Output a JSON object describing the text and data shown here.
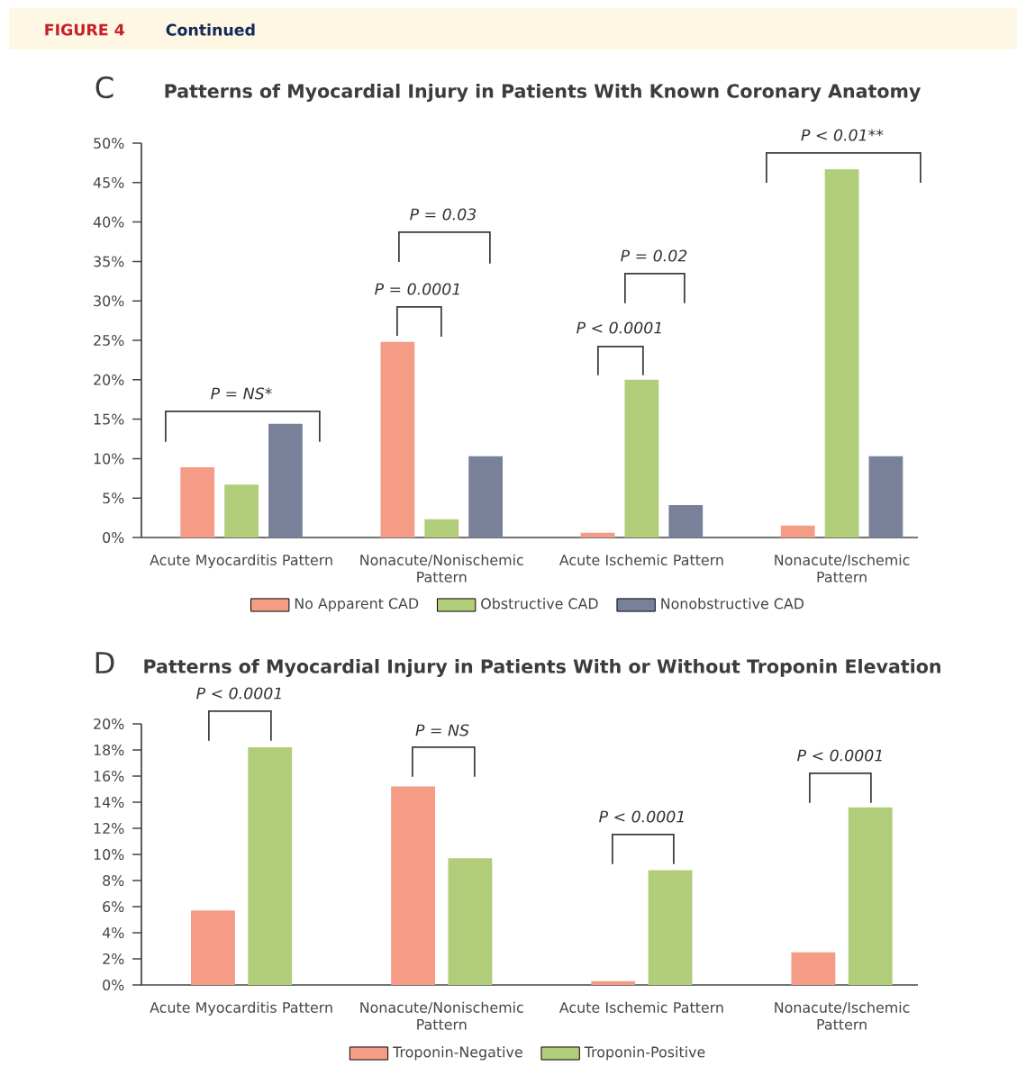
{
  "chart_data": [
    {
      "type": "bar",
      "title": "Patterns of Myocardial Injury in Patients With  Known Coronary Anatomy",
      "categories": [
        "Acute Myocarditis Pattern",
        "Nonacute/Nonischemic Pattern",
        "Acute Ischemic Pattern",
        "Nonacute/Ischemic Pattern"
      ],
      "series": [
        {
          "name": "No Apparent CAD",
          "color": "#f49c86",
          "values": [
            8.9,
            24.8,
            0.6,
            1.5
          ]
        },
        {
          "name": "Obstructive CAD",
          "color": "#b1cd7a",
          "values": [
            6.7,
            2.3,
            20.0,
            46.7
          ]
        },
        {
          "name": "Nonobstructive CAD",
          "color": "#798099",
          "values": [
            14.4,
            10.3,
            4.1,
            10.3
          ]
        }
      ],
      "ylim": [
        0,
        50
      ],
      "yticks": [
        {
          "value": 0,
          "label": "0%"
        },
        {
          "value": 5,
          "label": "5%"
        },
        {
          "value": 10,
          "label": "10%"
        },
        {
          "value": 15,
          "label": "15%"
        },
        {
          "value": 20,
          "label": "20%"
        },
        {
          "value": 25,
          "label": "25%"
        },
        {
          "value": 30,
          "label": "30%"
        },
        {
          "value": 35,
          "label": "35%"
        },
        {
          "value": 40,
          "label": "40%"
        },
        {
          "value": 45,
          "label": "45%"
        },
        {
          "value": 50,
          "label": "50%"
        }
      ],
      "legend": "bottom",
      "annotations": [
        "FIGURE 4",
        "Continued",
        "C",
        "P = NS*",
        "P = 0.0001",
        "P = 0.03",
        "P < 0.0001",
        "P = 0.02",
        "P < 0.01**"
      ]
    },
    {
      "type": "bar",
      "title": "Patterns of Myocardial Injury in Patients With or Without Troponin Elevation",
      "categories": [
        "Acute Myocarditis Pattern",
        "Nonacute/Nonischemic Pattern",
        "Acute Ischemic Pattern",
        "Nonacute/Ischemic Pattern"
      ],
      "series": [
        {
          "name": "Troponin-Negative",
          "color": "#f49c86",
          "values": [
            5.7,
            15.2,
            0.3,
            2.5
          ]
        },
        {
          "name": "Troponin-Positive",
          "color": "#b1cd7a",
          "values": [
            18.2,
            9.7,
            8.8,
            13.6
          ]
        }
      ],
      "ylim": [
        0,
        20
      ],
      "yticks": [
        {
          "value": 0,
          "label": "0%"
        },
        {
          "value": 2,
          "label": "2%"
        },
        {
          "value": 4,
          "label": "4%"
        },
        {
          "value": 6,
          "label": "6%"
        },
        {
          "value": 8,
          "label": "8%"
        },
        {
          "value": 10,
          "label": "10%"
        },
        {
          "value": 12,
          "label": "12%"
        },
        {
          "value": 14,
          "label": "14%"
        },
        {
          "value": 16,
          "label": "16%"
        },
        {
          "value": 18,
          "label": "18%"
        },
        {
          "value": 20,
          "label": "20%"
        }
      ],
      "legend": "bottom",
      "annotations": [
        "D",
        "P < 0.0001",
        "P = NS",
        "P < 0.0001",
        "P < 0.0001"
      ]
    }
  ]
}
